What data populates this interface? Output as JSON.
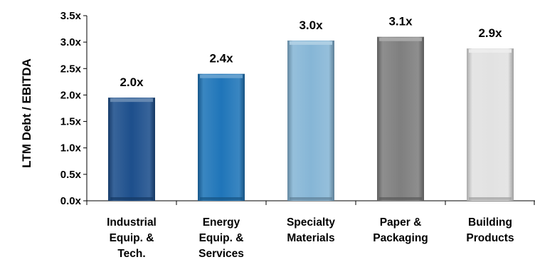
{
  "chart_data": {
    "type": "bar",
    "categories": [
      [
        "Industrial",
        "Equip. &",
        "Tech."
      ],
      [
        "Energy",
        "Equip. &",
        "Services"
      ],
      [
        "Specialty",
        "Materials"
      ],
      [
        "Paper &",
        "Packaging"
      ],
      [
        "Building",
        "Products"
      ]
    ],
    "values": [
      1.95,
      2.4,
      3.03,
      3.1,
      2.88
    ],
    "data_labels": [
      "2.0x",
      "2.4x",
      "3.0x",
      "3.1x",
      "2.9x"
    ],
    "colors": [
      "#1d4f8c",
      "#1f75b9",
      "#86b6d6",
      "#7f7f7f",
      "#e2e2e2"
    ],
    "title": "",
    "xlabel": "",
    "ylabel": "LTM Debt / EBITDA",
    "ylim": [
      0,
      3.5
    ],
    "yticks": [
      0,
      0.5,
      1.0,
      1.5,
      2.0,
      2.5,
      3.0,
      3.5
    ],
    "ytick_labels": [
      "0.0x",
      "0.5x",
      "1.0x",
      "1.5x",
      "2.0x",
      "2.5x",
      "3.0x",
      "3.5x"
    ],
    "grid": false,
    "legend": "none"
  }
}
